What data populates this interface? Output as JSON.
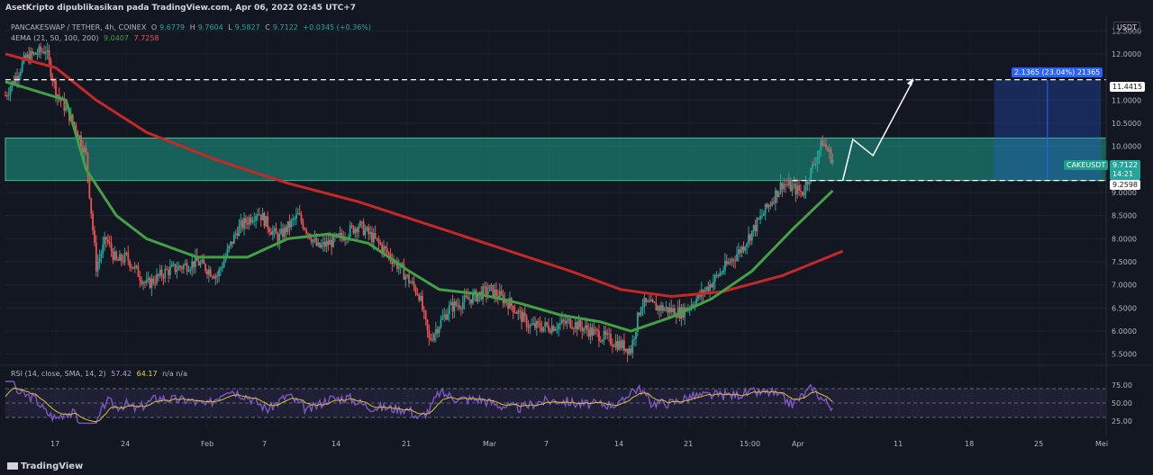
{
  "published": "AsetKripto dipublikasikan pada TradingView.com, Apr 06, 2022 02:45 UTC+7",
  "currency_badge": "USDT",
  "legend": {
    "symbol": "PANCAKESWAP / TETHER, 4h, COINEX",
    "o_label": "O",
    "o": "9.6779",
    "h_label": "H",
    "h": "9.7604",
    "l_label": "L",
    "l": "9.5827",
    "c_label": "C",
    "c": "9.7122",
    "change": "+0.0345 (+0.36%)",
    "ema_label": "4EMA (21, 50, 100, 200)",
    "ema_a": "9.0407",
    "ema_b": "7.7258"
  },
  "rsi_legend": {
    "label": "RSI (14, close, SMA, 14, 2)",
    "v1": "57.42",
    "v2": "64.17",
    "v3": "n/a n/a"
  },
  "price_tags": {
    "resistance": "11.4415",
    "support": "9.2598",
    "symbol_tag": "CAKEUSDT",
    "last": "9.7122",
    "countdown": "14:21",
    "measure": "2.1365 (23.04%) 21365"
  },
  "brand": "TradingView",
  "colors": {
    "bg": "#131722",
    "up": "#26a69a",
    "down": "#ef5350",
    "ema_green": "#43a047",
    "ema_red": "#c62828",
    "zone": "#1e9e8a",
    "rsi": "#7e57c2",
    "rsi_ma": "#d6c433",
    "measure": "#2962ff"
  },
  "chart_data": {
    "type": "candlestick",
    "y_ticks": [
      "12.5000",
      "12.0000",
      "11.0000",
      "10.5000",
      "10.0000",
      "9.0000",
      "8.5000",
      "8.0000",
      "7.5000",
      "7.0000",
      "6.5000",
      "6.0000",
      "5.5000"
    ],
    "y_tick_values": [
      12.5,
      12,
      11,
      10.5,
      10,
      9,
      8.5,
      8,
      7.5,
      7,
      6.5,
      6,
      5.5
    ],
    "x_ticks": [
      "17",
      "24",
      "Feb",
      "7",
      "14",
      "21",
      "Mar",
      "7",
      "14",
      "21",
      "15:00",
      "Apr",
      "11",
      "18",
      "25",
      "Mei"
    ],
    "ylim": [
      5.3,
      12.7
    ],
    "zone": [
      9.26,
      10.18
    ],
    "levels": [
      11.4415,
      9.2598
    ],
    "price_path": [
      [
        "2022-01-13",
        11.1
      ],
      [
        "2022-01-15",
        11.9
      ],
      [
        "2022-01-17",
        12.1
      ],
      [
        "2022-01-18",
        11.2
      ],
      [
        "2022-01-19",
        10.8
      ],
      [
        "2022-01-20",
        10.4
      ],
      [
        "2022-01-21",
        9.8
      ],
      [
        "2022-01-22",
        7.4
      ],
      [
        "2022-01-23",
        8.0
      ],
      [
        "2022-01-24",
        7.5
      ],
      [
        "2022-01-25",
        7.6
      ],
      [
        "2022-01-27",
        7.0
      ],
      [
        "2022-01-29",
        7.3
      ],
      [
        "2022-02-01",
        7.5
      ],
      [
        "2022-02-03",
        7.2
      ],
      [
        "2022-02-05",
        8.2
      ],
      [
        "2022-02-07",
        8.6
      ],
      [
        "2022-02-09",
        8.0
      ],
      [
        "2022-02-11",
        8.5
      ],
      [
        "2022-02-13",
        7.8
      ],
      [
        "2022-02-15",
        8.0
      ],
      [
        "2022-02-17",
        8.3
      ],
      [
        "2022-02-19",
        7.9
      ],
      [
        "2022-02-21",
        7.4
      ],
      [
        "2022-02-23",
        6.8
      ],
      [
        "2022-02-24",
        5.8
      ],
      [
        "2022-02-26",
        6.5
      ],
      [
        "2022-02-28",
        6.7
      ],
      [
        "2022-03-02",
        6.9
      ],
      [
        "2022-03-04",
        6.6
      ],
      [
        "2022-03-06",
        6.1
      ],
      [
        "2022-03-08",
        6.1
      ],
      [
        "2022-03-10",
        6.2
      ],
      [
        "2022-03-12",
        6.0
      ],
      [
        "2022-03-14",
        5.8
      ],
      [
        "2022-03-16",
        5.6
      ],
      [
        "2022-03-17",
        6.6
      ],
      [
        "2022-03-19",
        6.5
      ],
      [
        "2022-03-21",
        6.4
      ],
      [
        "2022-03-23",
        6.8
      ],
      [
        "2022-03-25",
        7.3
      ],
      [
        "2022-03-27",
        7.8
      ],
      [
        "2022-03-29",
        8.5
      ],
      [
        "2022-03-31",
        9.2
      ],
      [
        "2022-04-02",
        9.0
      ],
      [
        "2022-04-04",
        10.1
      ],
      [
        "2022-04-05",
        9.71
      ]
    ],
    "ema_green_path": [
      [
        "2022-01-13",
        11.4
      ],
      [
        "2022-01-19",
        11.0
      ],
      [
        "2022-01-21",
        9.5
      ],
      [
        "2022-01-24",
        8.5
      ],
      [
        "2022-01-27",
        8.0
      ],
      [
        "2022-02-01",
        7.6
      ],
      [
        "2022-02-06",
        7.6
      ],
      [
        "2022-02-10",
        8.0
      ],
      [
        "2022-02-14",
        8.1
      ],
      [
        "2022-02-18",
        7.9
      ],
      [
        "2022-02-22",
        7.3
      ],
      [
        "2022-02-25",
        6.9
      ],
      [
        "2022-03-01",
        6.8
      ],
      [
        "2022-03-05",
        6.6
      ],
      [
        "2022-03-09",
        6.35
      ],
      [
        "2022-03-13",
        6.2
      ],
      [
        "2022-03-16",
        6.0
      ],
      [
        "2022-03-20",
        6.3
      ],
      [
        "2022-03-24",
        6.7
      ],
      [
        "2022-03-28",
        7.3
      ],
      [
        "2022-04-01",
        8.2
      ],
      [
        "2022-04-05",
        9.04
      ]
    ],
    "ema_red_path": [
      [
        "2022-01-13",
        12.0
      ],
      [
        "2022-01-18",
        11.7
      ],
      [
        "2022-01-22",
        11.0
      ],
      [
        "2022-01-27",
        10.3
      ],
      [
        "2022-02-03",
        9.7
      ],
      [
        "2022-02-10",
        9.2
      ],
      [
        "2022-02-17",
        8.8
      ],
      [
        "2022-02-24",
        8.3
      ],
      [
        "2022-03-03",
        7.8
      ],
      [
        "2022-03-10",
        7.3
      ],
      [
        "2022-03-15",
        6.9
      ],
      [
        "2022-03-20",
        6.75
      ],
      [
        "2022-03-25",
        6.85
      ],
      [
        "2022-03-31",
        7.2
      ],
      [
        "2022-04-06",
        7.73
      ]
    ],
    "projection_path": [
      [
        "2022-04-06",
        9.26
      ],
      [
        "2022-04-07",
        10.15
      ],
      [
        "2022-04-09",
        9.8
      ],
      [
        "2022-04-13",
        11.44
      ]
    ],
    "rsi": {
      "levels": [
        70,
        50,
        30
      ],
      "y_ticks": [
        "75.00",
        "50.00",
        "25.00"
      ],
      "y_tick_values": [
        75,
        50,
        25
      ],
      "ylim": [
        15,
        85
      ],
      "last": 57.42,
      "last_ma": 64.17
    }
  }
}
